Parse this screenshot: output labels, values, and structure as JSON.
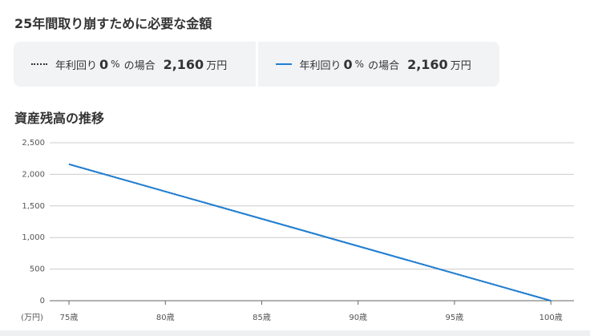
{
  "title": "25年間取り崩すために必要な金額",
  "summary": [
    {
      "prefix": "年利回り",
      "rate": "0",
      "rate_unit": "%",
      "suffix": "の場合",
      "amount": "2,160",
      "amount_unit": "万円"
    },
    {
      "prefix": "年利回り",
      "rate": "0",
      "rate_unit": "%",
      "suffix": "の場合",
      "amount": "2,160",
      "amount_unit": "万円"
    }
  ],
  "section_title": "資産残高の推移",
  "chart_data": {
    "type": "line",
    "y_unit_label": "(万円)",
    "x": [
      75,
      100
    ],
    "series": [
      {
        "color": "#333333",
        "dash": "dotted",
        "values": [
          2160,
          0
        ]
      },
      {
        "color": "#1f7fd4",
        "dash": "solid",
        "values": [
          2160,
          0
        ]
      }
    ],
    "xlim": [
      74,
      101.2
    ],
    "xticks": [
      {
        "value": 75,
        "label": "75歳"
      },
      {
        "value": 80,
        "label": "80歳"
      },
      {
        "value": 85,
        "label": "85歳"
      },
      {
        "value": 90,
        "label": "90歳"
      },
      {
        "value": 95,
        "label": "95歳"
      },
      {
        "value": 100,
        "label": "100歳"
      }
    ],
    "ylim": [
      0,
      2500
    ],
    "yticks": [
      0,
      500,
      {
        "value": 1000,
        "label": "1,000"
      },
      {
        "value": 1500,
        "label": "1,500"
      },
      {
        "value": 2000,
        "label": "2,000"
      },
      {
        "value": 2500,
        "label": "2,500"
      }
    ],
    "grid": true
  }
}
